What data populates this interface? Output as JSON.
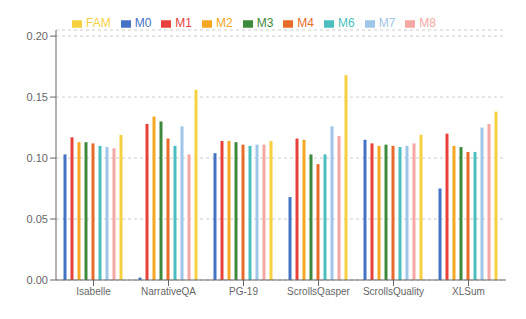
{
  "chart_data": {
    "type": "bar",
    "categories": [
      "Isabelle",
      "NarrativeQA",
      "PG-19",
      "ScrollsQasper",
      "ScrollsQuality",
      "XLSum"
    ],
    "series": [
      {
        "name": "M0",
        "color": "#4472C4",
        "values": [
          0.103,
          0.002,
          0.104,
          0.068,
          0.115,
          0.075
        ]
      },
      {
        "name": "M1",
        "color": "#E8403A",
        "values": [
          0.117,
          0.128,
          0.114,
          0.116,
          0.112,
          0.12
        ]
      },
      {
        "name": "M2",
        "color": "#F5A623",
        "values": [
          0.113,
          0.134,
          0.114,
          0.115,
          0.11,
          0.11
        ]
      },
      {
        "name": "M3",
        "color": "#3D8A3D",
        "values": [
          0.113,
          0.13,
          0.113,
          0.103,
          0.111,
          0.109
        ]
      },
      {
        "name": "M4",
        "color": "#E86B2A",
        "values": [
          0.112,
          0.116,
          0.111,
          0.095,
          0.11,
          0.105
        ]
      },
      {
        "name": "M6",
        "color": "#4BBFBF",
        "values": [
          0.11,
          0.11,
          0.11,
          0.103,
          0.109,
          0.105
        ]
      },
      {
        "name": "M7",
        "color": "#9FC5E8",
        "values": [
          0.109,
          0.126,
          0.111,
          0.126,
          0.11,
          0.125
        ]
      },
      {
        "name": "M8",
        "color": "#F4A7A3",
        "values": [
          0.108,
          0.103,
          0.111,
          0.118,
          0.112,
          0.128
        ]
      },
      {
        "name": "FAM",
        "color": "#F5D040",
        "values": [
          0.119,
          0.156,
          0.114,
          0.168,
          0.119,
          0.138
        ]
      }
    ],
    "ylim": [
      0.0,
      0.205
    ],
    "yticks": [
      {
        "value": 0.0,
        "label": "0.00"
      },
      0.05,
      {
        "value": 0.1,
        "label": "0.10"
      },
      0.15,
      {
        "value": 0.2,
        "label": "0.20"
      }
    ],
    "grid": true,
    "legend": "top"
  }
}
